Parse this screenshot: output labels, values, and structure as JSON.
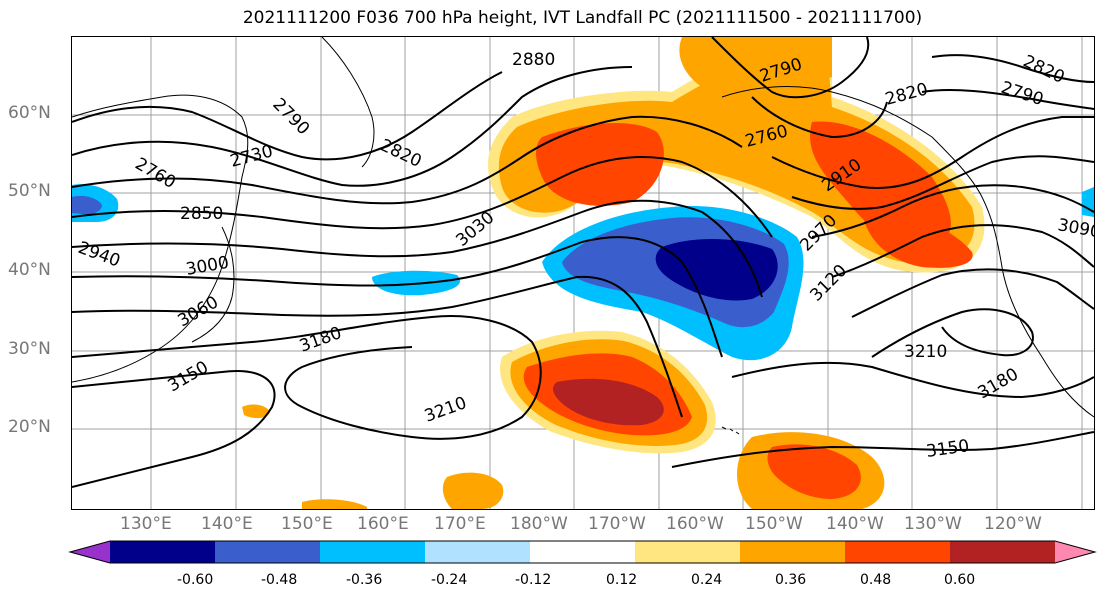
{
  "title": "2021111200 F036 700 hPa height, IVT Landfall PC (2021111500 - 2021111700)",
  "lat_labels": [
    "60°N",
    "50°N",
    "40°N",
    "30°N",
    "20°N"
  ],
  "lon_labels": [
    "130°E",
    "140°E",
    "150°E",
    "160°E",
    "170°E",
    "180°W",
    "170°W",
    "160°W",
    "150°W",
    "140°W",
    "130°W",
    "120°W"
  ],
  "contour_labels": [
    "2880",
    "2790",
    "2790",
    "2760",
    "2730",
    "2850",
    "2820",
    "2940",
    "3000",
    "3060",
    "3030",
    "3180",
    "3150",
    "3210",
    "2760",
    "2820",
    "2910",
    "2970",
    "3120",
    "3210",
    "3180",
    "3150",
    "2820",
    "2790",
    "3090"
  ],
  "colorbar": {
    "ticks": [
      "-0.60",
      "-0.48",
      "-0.36",
      "-0.24",
      "-0.12",
      "0.12",
      "0.24",
      "0.36",
      "0.48",
      "0.60"
    ],
    "colors": [
      "#9932cc",
      "#00008b",
      "#3a5fcd",
      "#00bfff",
      "#b0e2ff",
      "#ffffff",
      "#ffe680",
      "#ffa500",
      "#ff4500",
      "#b22222",
      "#ff88b0"
    ]
  }
}
